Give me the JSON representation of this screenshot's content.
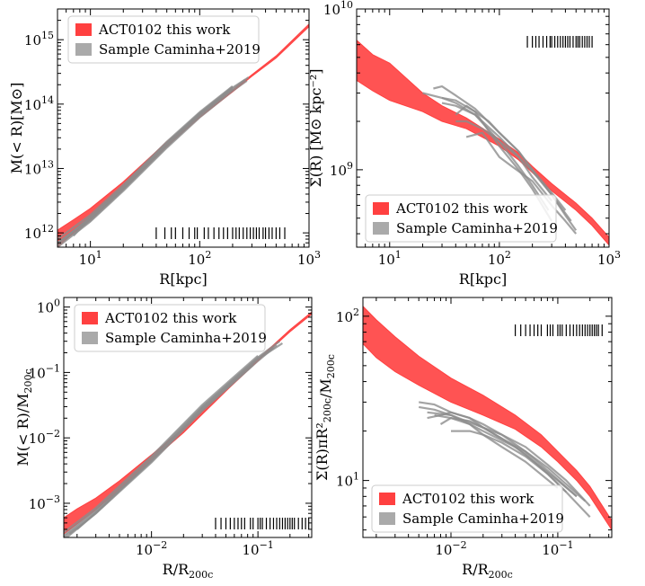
{
  "figure": {
    "background": "#ffffff"
  },
  "legend": {
    "red_label": "ACT0102 this work",
    "gray_label": "Sample Caminha+2019",
    "red_color": "#ff4040",
    "gray_color": "#aaaaaa"
  },
  "chart_data": [
    {
      "type": "area",
      "panel": "top-left",
      "xlabel": "R[kpc]",
      "ylabel": "M(< R)[M⊙]",
      "xscale": "log",
      "yscale": "log",
      "xlim": [
        5,
        1000
      ],
      "ylim": [
        600000000000,
        3000000000000000
      ],
      "xticks": [
        10,
        100,
        1000
      ],
      "xtick_labels": [
        {
          "base": "10",
          "exp": "1"
        },
        {
          "base": "10",
          "exp": "2"
        },
        {
          "base": "10",
          "exp": "3"
        }
      ],
      "yticks": [
        1000000000000,
        10000000000000,
        100000000000000,
        1000000000000000
      ],
      "ytick_labels": [
        {
          "base": "10",
          "exp": "12"
        },
        {
          "base": "10",
          "exp": "13"
        },
        {
          "base": "10",
          "exp": "14"
        },
        {
          "base": "10",
          "exp": "15"
        }
      ],
      "legend_position": "upper left",
      "rug_position": "bottom",
      "rug_x": [
        40,
        48,
        55,
        60,
        70,
        80,
        90,
        95,
        110,
        120,
        135,
        150,
        165,
        180,
        200,
        215,
        230,
        250,
        270,
        290,
        310,
        330,
        350,
        380,
        400,
        430,
        460,
        500,
        540,
        600
      ],
      "red_band": {
        "x": [
          5,
          7,
          10,
          20,
          50,
          100,
          200,
          300,
          500,
          1000
        ],
        "lower": [
          600000000000,
          1000000000000,
          1600000000000,
          4800000000000,
          22000000000000,
          62000000000000,
          155000000000000,
          270000000000000,
          520000000000000,
          1600000000000000
        ],
        "upper": [
          1100000000000,
          1600000000000,
          2400000000000,
          6200000000000,
          26000000000000,
          68000000000000,
          165000000000000,
          285000000000000,
          560000000000000,
          1750000000000000
        ]
      },
      "gray_curves": [
        {
          "x": [
            5,
            10,
            20,
            50,
            100,
            200,
            280
          ],
          "y": [
            700000000000,
            1700000000000,
            5000000000000,
            24000000000000,
            70000000000000,
            180000000000000,
            260000000000000
          ]
        },
        {
          "x": [
            5,
            10,
            20,
            50,
            100,
            200,
            270
          ],
          "y": [
            600000000000,
            1500000000000,
            4500000000000,
            21000000000000,
            62000000000000,
            160000000000000,
            230000000000000
          ]
        },
        {
          "x": [
            5,
            10,
            20,
            50,
            100,
            200
          ],
          "y": [
            800000000000,
            1900000000000,
            5600000000000,
            26000000000000,
            75000000000000,
            190000000000000
          ]
        },
        {
          "x": [
            5,
            10,
            20,
            50,
            100,
            200,
            260
          ],
          "y": [
            650000000000,
            1550000000000,
            4700000000000,
            22000000000000,
            65000000000000,
            170000000000000,
            240000000000000
          ]
        },
        {
          "x": [
            6,
            10,
            20,
            50,
            100,
            150
          ],
          "y": [
            850000000000,
            1800000000000,
            5300000000000,
            25000000000000,
            72000000000000,
            120000000000000
          ]
        },
        {
          "x": [
            5,
            10,
            20,
            50,
            100,
            200
          ],
          "y": [
            700000000000,
            1650000000000,
            4900000000000,
            23000000000000,
            68000000000000,
            175000000000000
          ]
        },
        {
          "x": [
            7,
            10,
            20,
            50,
            100,
            200
          ],
          "y": [
            900000000000,
            1700000000000,
            5100000000000,
            24500000000000,
            72000000000000,
            185000000000000
          ]
        }
      ]
    },
    {
      "type": "area",
      "panel": "top-right",
      "xlabel": "R[kpc]",
      "ylabel": "Σ(R) [M⊙ kpc⁻²]",
      "xscale": "log",
      "yscale": "log",
      "xlim": [
        5,
        1000
      ],
      "ylim": [
        330000000,
        10000000000
      ],
      "xticks": [
        10,
        100,
        1000
      ],
      "xtick_labels": [
        {
          "base": "10",
          "exp": "1"
        },
        {
          "base": "10",
          "exp": "2"
        },
        {
          "base": "10",
          "exp": "3"
        }
      ],
      "yticks": [
        1000000000,
        10000000000
      ],
      "ytick_labels": [
        {
          "base": "10",
          "exp": "9"
        },
        {
          "base": "10",
          "exp": "10"
        }
      ],
      "legend_position": "lower left",
      "rug_position": "top",
      "rug_x": [
        180,
        200,
        215,
        230,
        250,
        270,
        290,
        300,
        320,
        340,
        360,
        380,
        400,
        420,
        440,
        470,
        500,
        520,
        540,
        570,
        600,
        630,
        660,
        700
      ],
      "red_band": {
        "x": [
          5,
          7,
          10,
          20,
          30,
          50,
          100,
          150,
          200,
          300,
          500,
          700,
          1000
        ],
        "lower": [
          3600000000,
          3100000000,
          2700000000,
          2300000000,
          2000000000,
          1800000000,
          1400000000,
          1150000000,
          960000000,
          740000000,
          560000000,
          450000000,
          340000000
        ],
        "upper": [
          6400000000,
          5200000000,
          4600000000,
          3000000000,
          2500000000,
          2100000000,
          1550000000,
          1270000000,
          1050000000,
          820000000,
          620000000,
          500000000,
          380000000
        ]
      },
      "gray_curves": [
        {
          "x": [
            20,
            30,
            40,
            60,
            100,
            150,
            200,
            300,
            400,
            500
          ],
          "y": [
            3000000000,
            2800000000,
            2600000000,
            2200000000,
            1600000000,
            1200000000,
            980000000,
            700000000,
            520000000,
            420000000
          ]
        },
        {
          "x": [
            25,
            30,
            40,
            60,
            100,
            150,
            200,
            300,
            400
          ],
          "y": [
            3200000000,
            3300000000,
            2900000000,
            2400000000,
            1700000000,
            1300000000,
            1000000000,
            720000000,
            560000000
          ]
        },
        {
          "x": [
            30,
            40,
            60,
            100,
            150,
            200,
            280
          ],
          "y": [
            2600000000,
            2500000000,
            2200000000,
            1500000000,
            1050000000,
            800000000,
            560000000
          ]
        },
        {
          "x": [
            40,
            50,
            60,
            80,
            100,
            150,
            200,
            300,
            450
          ],
          "y": [
            2200000000,
            2500000000,
            2300000000,
            2000000000,
            1700000000,
            1300000000,
            1000000000,
            700000000,
            480000000
          ]
        },
        {
          "x": [
            30,
            40,
            60,
            100,
            150,
            200,
            300
          ],
          "y": [
            2800000000,
            2700000000,
            2300000000,
            1400000000,
            1000000000,
            760000000,
            480000000
          ]
        },
        {
          "x": [
            50,
            70,
            100,
            130,
            200,
            300,
            400,
            500
          ],
          "y": [
            1600000000,
            1700000000,
            1200000000,
            1050000000,
            850000000,
            600000000,
            480000000,
            400000000
          ]
        },
        {
          "x": [
            40,
            50,
            70,
            100,
            150,
            200,
            300
          ],
          "y": [
            2000000000,
            2000000000,
            1800000000,
            1500000000,
            1200000000,
            900000000,
            640000000
          ]
        }
      ]
    },
    {
      "type": "area",
      "panel": "bottom-left",
      "xlabel": "R/R200c",
      "ylabel": "M(< R)/M200c",
      "xscale": "log",
      "yscale": "log",
      "xlim": [
        0.0015,
        0.32
      ],
      "ylim": [
        0.0003,
        1.4
      ],
      "xticks": [
        0.01,
        0.1
      ],
      "xtick_labels": [
        {
          "base": "10",
          "exp": "−2"
        },
        {
          "base": "10",
          "exp": "−1"
        }
      ],
      "yticks": [
        0.001,
        0.01,
        0.1,
        1
      ],
      "ytick_labels": [
        {
          "base": "10",
          "exp": "−3"
        },
        {
          "base": "10",
          "exp": "−2"
        },
        {
          "base": "10",
          "exp": "−1"
        },
        {
          "base": "10",
          "exp": "0"
        }
      ],
      "legend_position": "upper left",
      "rug_position": "bottom",
      "rug_x": [
        0.04,
        0.045,
        0.05,
        0.055,
        0.06,
        0.065,
        0.07,
        0.075,
        0.085,
        0.09,
        0.1,
        0.105,
        0.11,
        0.12,
        0.13,
        0.14,
        0.15,
        0.16,
        0.17,
        0.18,
        0.19,
        0.2,
        0.21,
        0.22,
        0.24,
        0.26,
        0.28,
        0.3
      ],
      "red_band": {
        "x": [
          0.0015,
          0.002,
          0.003,
          0.005,
          0.01,
          0.02,
          0.05,
          0.1,
          0.2,
          0.32
        ],
        "lower": [
          0.00034,
          0.00048,
          0.0008,
          0.0016,
          0.0045,
          0.012,
          0.052,
          0.15,
          0.42,
          0.78
        ],
        "upper": [
          0.0006,
          0.00082,
          0.0012,
          0.0022,
          0.0055,
          0.014,
          0.056,
          0.16,
          0.45,
          0.84
        ]
      },
      "gray_curves": [
        {
          "x": [
            0.0015,
            0.003,
            0.01,
            0.03,
            0.1,
            0.17
          ],
          "y": [
            0.0003,
            0.00075,
            0.0045,
            0.028,
            0.16,
            0.28
          ]
        },
        {
          "x": [
            0.0015,
            0.003,
            0.01,
            0.03,
            0.1,
            0.16
          ],
          "y": [
            0.00032,
            0.0008,
            0.005,
            0.03,
            0.17,
            0.3
          ]
        },
        {
          "x": [
            0.0017,
            0.003,
            0.01,
            0.03,
            0.1,
            0.15
          ],
          "y": [
            0.00034,
            0.0007,
            0.0042,
            0.026,
            0.15,
            0.26
          ]
        },
        {
          "x": [
            0.0015,
            0.003,
            0.01,
            0.03,
            0.1
          ],
          "y": [
            0.00036,
            0.00085,
            0.0052,
            0.032,
            0.18
          ]
        },
        {
          "x": [
            0.002,
            0.003,
            0.01,
            0.03,
            0.09
          ],
          "y": [
            0.0004,
            0.00072,
            0.0044,
            0.027,
            0.13
          ]
        },
        {
          "x": [
            0.0016,
            0.003,
            0.01,
            0.03,
            0.1,
            0.14
          ],
          "y": [
            0.0003,
            0.0007,
            0.0046,
            0.029,
            0.165,
            0.24
          ]
        }
      ]
    },
    {
      "type": "area",
      "panel": "bottom-right",
      "xlabel": "R/R200c",
      "ylabel": "Σ(R)πR²200c/M200c",
      "xscale": "log",
      "yscale": "log",
      "xlim": [
        0.0015,
        0.32
      ],
      "ylim": [
        4.5,
        130
      ],
      "xticks": [
        0.01,
        0.1
      ],
      "xtick_labels": [
        {
          "base": "10",
          "exp": "−2"
        },
        {
          "base": "10",
          "exp": "−1"
        }
      ],
      "yticks": [
        10,
        100
      ],
      "ytick_labels": [
        {
          "base": "10",
          "exp": "1"
        },
        {
          "base": "10",
          "exp": "2"
        }
      ],
      "legend_position": "lower left",
      "rug_position": "top",
      "rug_x": [
        0.04,
        0.045,
        0.05,
        0.055,
        0.06,
        0.065,
        0.07,
        0.08,
        0.085,
        0.09,
        0.1,
        0.105,
        0.11,
        0.12,
        0.13,
        0.14,
        0.15,
        0.16,
        0.17,
        0.18,
        0.19,
        0.2,
        0.21,
        0.22,
        0.23,
        0.24,
        0.26
      ],
      "red_band": {
        "x": [
          0.0015,
          0.002,
          0.003,
          0.005,
          0.01,
          0.02,
          0.04,
          0.07,
          0.1,
          0.15,
          0.2,
          0.32
        ],
        "lower": [
          68,
          56,
          46,
          38,
          30,
          25,
          20.5,
          16,
          13,
          10,
          8,
          5
        ],
        "upper": [
          115,
          95,
          75,
          57,
          42,
          33,
          25,
          19,
          15,
          11.5,
          9.2,
          5.7
        ]
      },
      "gray_curves": [
        {
          "x": [
            0.005,
            0.007,
            0.01,
            0.015,
            0.02,
            0.03,
            0.05,
            0.08,
            0.12,
            0.2
          ],
          "y": [
            30,
            29,
            26,
            24,
            22,
            19,
            16,
            12.5,
            10,
            7
          ]
        },
        {
          "x": [
            0.006,
            0.008,
            0.01,
            0.015,
            0.02,
            0.03,
            0.05,
            0.08,
            0.15
          ],
          "y": [
            24,
            25,
            26,
            24,
            21,
            19,
            15,
            11.5,
            8
          ]
        },
        {
          "x": [
            0.005,
            0.007,
            0.01,
            0.015,
            0.02,
            0.03,
            0.05,
            0.1
          ],
          "y": [
            28,
            27,
            25,
            22,
            19,
            16,
            13,
            9
          ]
        },
        {
          "x": [
            0.008,
            0.01,
            0.015,
            0.02,
            0.03,
            0.05,
            0.08,
            0.12,
            0.18
          ],
          "y": [
            22,
            24,
            23,
            21,
            18,
            15,
            12,
            9.5,
            7.5
          ]
        },
        {
          "x": [
            0.01,
            0.015,
            0.02,
            0.03,
            0.05,
            0.08,
            0.12,
            0.2
          ],
          "y": [
            20,
            20,
            19,
            17,
            14,
            11,
            8.5,
            6
          ]
        },
        {
          "x": [
            0.006,
            0.01,
            0.02,
            0.03,
            0.05,
            0.08,
            0.12
          ],
          "y": [
            26,
            25,
            21,
            18,
            14.5,
            11,
            8.5
          ]
        },
        {
          "x": [
            0.007,
            0.01,
            0.015,
            0.02,
            0.04,
            0.06,
            0.1,
            0.15
          ],
          "y": [
            25,
            24,
            22,
            20,
            16,
            13,
            10,
            8
          ]
        }
      ]
    }
  ]
}
